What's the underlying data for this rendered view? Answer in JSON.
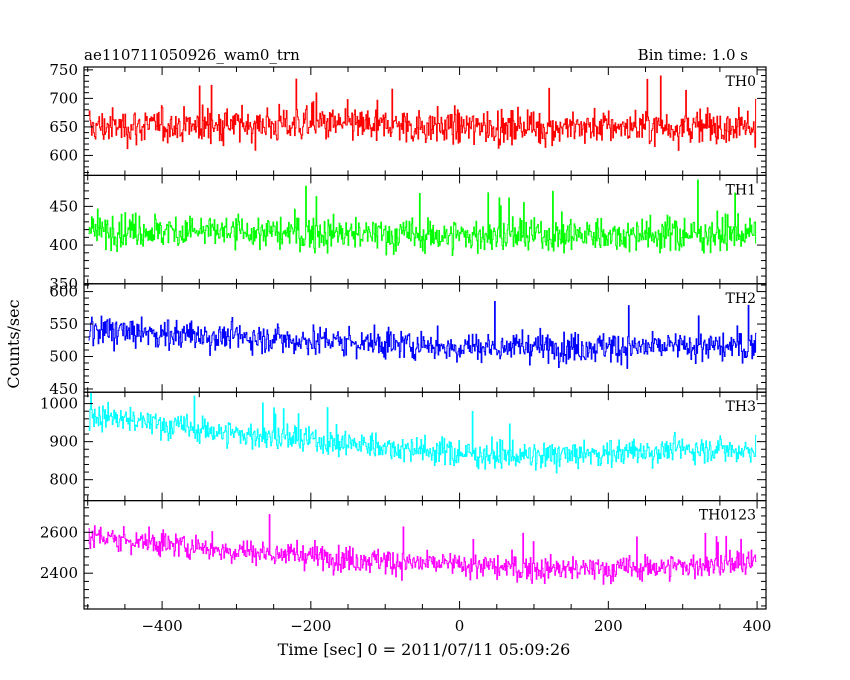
{
  "header": {
    "title": "ae110711050926_wam0_trn",
    "bin_time": "Bin time: 1.0 s"
  },
  "chart_data": {
    "type": "line",
    "xlabel": "Time [sec] 0 = 2011/07/11 05:09:26",
    "ylabel": "Counts/sec",
    "xlim": [
      -505,
      412
    ],
    "x_start": -498.5,
    "x_end": 398.5,
    "x_step": 1.0,
    "x_ticks": [
      -400,
      -200,
      0,
      200,
      400
    ],
    "x_tick_labels": [
      "−400",
      "−200",
      "0",
      "200",
      "400"
    ],
    "panels": [
      {
        "name": "TH0",
        "color": "#ff0000",
        "ylim": [
          565,
          755
        ],
        "yticks": [
          600,
          650,
          700,
          750
        ],
        "ytick_labels": [
          "600",
          "650",
          "700",
          "750"
        ],
        "trend": [
          [
            -500,
            650
          ],
          [
            -200,
            655
          ],
          [
            0,
            650
          ],
          [
            400,
            650
          ]
        ],
        "noise": 30
      },
      {
        "name": "TH1",
        "color": "#00ff00",
        "ylim": [
          350,
          490
        ],
        "yticks": [
          350,
          400,
          450
        ],
        "ytick_labels": [
          "350",
          "400",
          "450"
        ],
        "trend": [
          [
            -500,
            420
          ],
          [
            -200,
            415
          ],
          [
            0,
            412
          ],
          [
            400,
            415
          ]
        ],
        "noise": 22
      },
      {
        "name": "TH2",
        "color": "#0000ff",
        "ylim": [
          445,
          612
        ],
        "yticks": [
          450,
          500,
          550,
          600
        ],
        "ytick_labels": [
          "450",
          "500",
          "550",
          "600"
        ],
        "trend": [
          [
            -500,
            540
          ],
          [
            -200,
            525
          ],
          [
            0,
            515
          ],
          [
            400,
            515
          ]
        ],
        "noise": 23
      },
      {
        "name": "TH3",
        "color": "#00ffff",
        "ylim": [
          745,
          1030
        ],
        "yticks": [
          800,
          900,
          1000
        ],
        "ytick_labels": [
          "800",
          "900",
          "1000"
        ],
        "trend": [
          [
            -500,
            970
          ],
          [
            -300,
            920
          ],
          [
            0,
            870
          ],
          [
            100,
            860
          ],
          [
            300,
            880
          ],
          [
            400,
            880
          ]
        ],
        "noise": 35
      },
      {
        "name": "TH0123",
        "color": "#ff00ff",
        "ylim": [
          2225,
          2755
        ],
        "yticks": [
          2400,
          2600
        ],
        "ytick_labels": [
          "2400",
          "2600"
        ],
        "trend": [
          [
            -500,
            2580
          ],
          [
            -300,
            2510
          ],
          [
            -100,
            2460
          ],
          [
            100,
            2420
          ],
          [
            200,
            2420
          ],
          [
            400,
            2450
          ]
        ],
        "noise": 62
      }
    ]
  }
}
